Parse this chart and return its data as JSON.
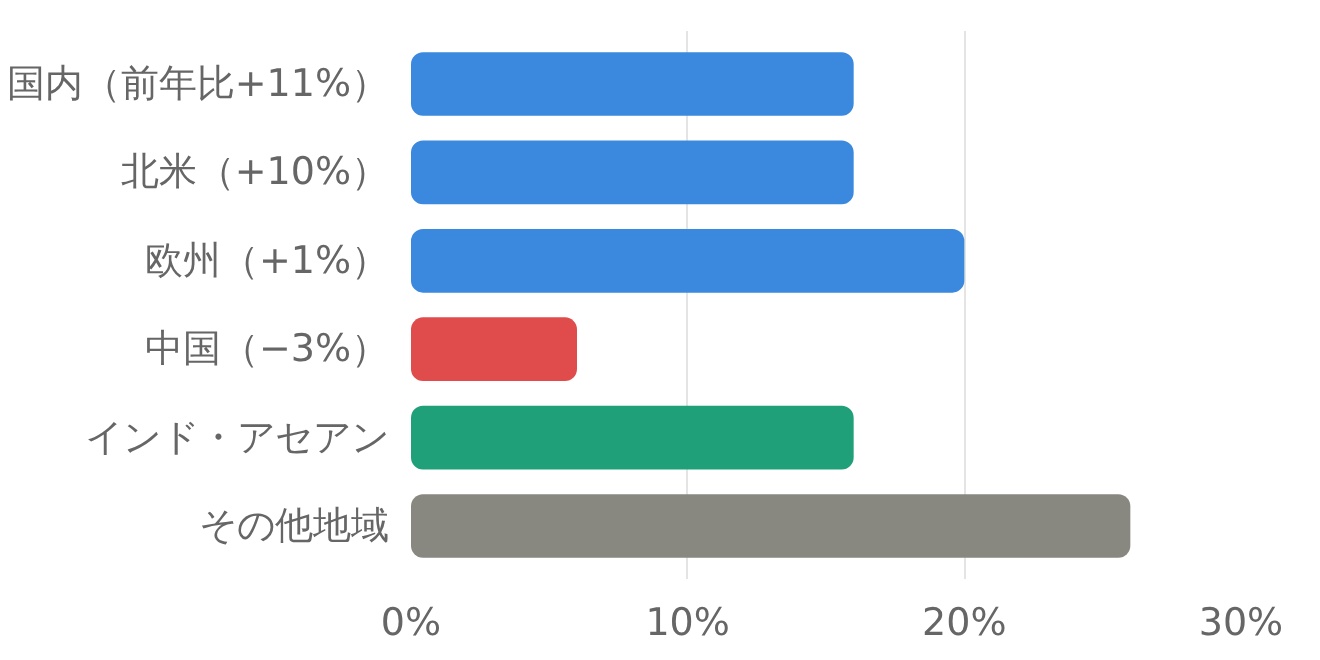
{
  "chart_data": {
    "type": "bar",
    "orientation": "horizontal",
    "categories": [
      "国内（前年比+11%）",
      "北米（+10%）",
      "欧州（+1%）",
      "中国（−3%）",
      "インド・アセアン",
      "その他地域"
    ],
    "values": [
      16,
      16,
      20,
      6,
      16,
      26
    ],
    "colors": [
      "#3a89de",
      "#3a89de",
      "#3a89de",
      "#e04b4b",
      "#20a078",
      "#898880"
    ],
    "xlim": [
      0,
      30
    ],
    "xticks": [
      {
        "value": 0,
        "label": "0%"
      },
      {
        "value": 10,
        "label": "10%"
      },
      {
        "value": 20,
        "label": "20%"
      },
      {
        "value": 30,
        "label": "30%"
      }
    ],
    "grid": "x"
  }
}
